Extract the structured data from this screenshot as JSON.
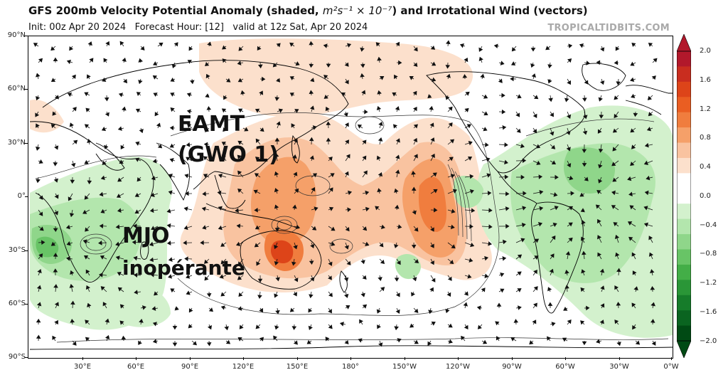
{
  "header": {
    "title_main": "GFS 200mb Velocity Potential Anomaly (shaded, ",
    "title_units": "m²s⁻¹ × 10⁻⁷",
    "title_tail": ") and Irrotational Wind (vectors)",
    "subtitle": "Init: 00z Apr 20 2024   Forecast Hour: [12]   valid at 12z Sat, Apr 20 2024",
    "credit": "TROPICALTIDBITS.COM"
  },
  "map": {
    "lat_labels": [
      "90°N",
      "60°N",
      "30°N",
      "0°",
      "30°S",
      "60°S",
      "90°S"
    ],
    "lon_labels": [
      "30°E",
      "60°E",
      "90°E",
      "120°E",
      "150°E",
      "180°",
      "150°W",
      "120°W",
      "90°W",
      "60°W",
      "30°W",
      "0°W"
    ],
    "annotations": {
      "eamt_line1": "EAMT",
      "eamt_line2": "(GWO 1)",
      "mjo_line1": "MJO",
      "mjo_line2": "inopérante"
    }
  },
  "colorbar": {
    "labels": [
      "2.0",
      "1.6",
      "1.2",
      "0.8",
      "0.4",
      "0.0",
      "−0.4",
      "−0.8",
      "−1.2",
      "−1.6",
      "−2.0"
    ],
    "colors": [
      "#b2182b",
      "#c92d1f",
      "#dd4419",
      "#ea5e22",
      "#f07d3e",
      "#f5a069",
      "#f9c3a0",
      "#fce0cc",
      "#ffffff",
      "#ffffff",
      "#d3f1cd",
      "#b3e6ad",
      "#8fd68a",
      "#68c466",
      "#43ae47",
      "#2a9637",
      "#167c2a",
      "#0a6420",
      "#004a14"
    ]
  }
}
